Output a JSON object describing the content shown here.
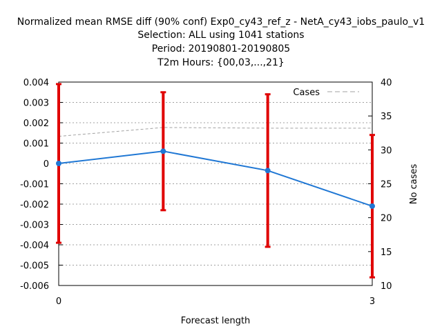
{
  "chart_data": {
    "type": "line",
    "title": [
      "Normalized mean RMSE diff (90% conf) Exp0_cy43_ref_z - NetA_cy43_iobs_paulo_v1",
      "Selection: ALL using  1041 stations",
      "Period: 20190801-20190805",
      "T2m   Hours: {00,03,...,21}"
    ],
    "xlabel": "Forecast length",
    "ylabel": "",
    "y2label": "No cases",
    "xlim": [
      0,
      3
    ],
    "ylim": [
      -0.006,
      0.004
    ],
    "y2lim": [
      10,
      40
    ],
    "x_ticks": [
      "0",
      "3"
    ],
    "y_ticks": [
      "0.004",
      "0.003",
      "0.002",
      "0.001",
      "0",
      "-0.001",
      "-0.002",
      "-0.003",
      "-0.004",
      "-0.005",
      "-0.006"
    ],
    "y2_ticks": [
      "40",
      "35",
      "30",
      "25",
      "20",
      "15",
      "10"
    ],
    "grid": true,
    "legend_position": "top-right",
    "series": [
      {
        "x": [
          0,
          1,
          2,
          3
        ],
        "y": [
          0.0,
          0.0006,
          -0.00035,
          -0.0021
        ],
        "err_low": [
          -0.0039,
          -0.0023,
          -0.0041,
          -0.0056
        ],
        "err_high": [
          0.0039,
          0.0035,
          0.0034,
          0.0014
        ],
        "color": "#1f77d4",
        "error_color": "#e00000"
      },
      {
        "name": "Cases",
        "axis": "y2",
        "x": [
          0,
          1,
          2,
          3
        ],
        "y": [
          32,
          33.3,
          33.2,
          33.2
        ],
        "color": "#a0a0a0",
        "dashed": true
      }
    ]
  }
}
